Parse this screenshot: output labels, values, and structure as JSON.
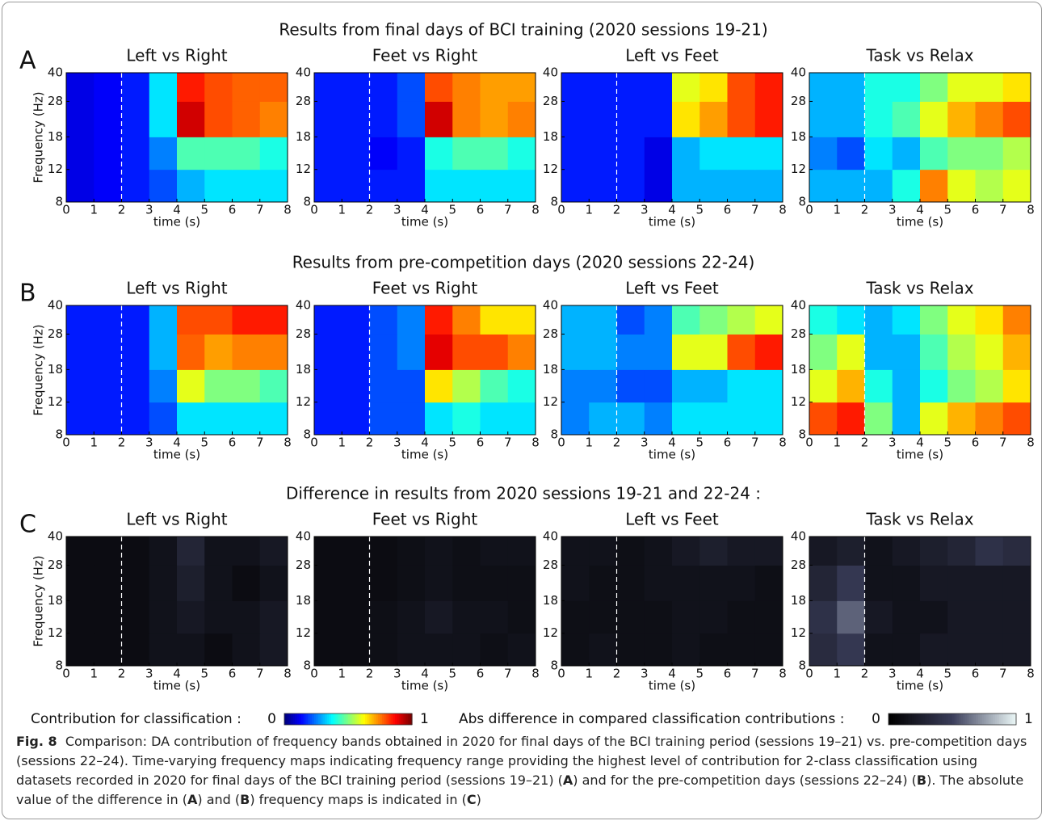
{
  "sections": [
    {
      "label": "A",
      "title": "Results from final days of BCI training (2020 sessions 19-21)"
    },
    {
      "label": "B",
      "title": "Results from pre-competition days (2020 sessions 22-24)"
    },
    {
      "label": "C",
      "title": "Difference in results from 2020 sessions 19-21 and 22-24 :"
    }
  ],
  "chart_data": [
    {
      "type": "heatmap",
      "title": "Left vs Right",
      "xlabel": "time (s)",
      "ylabel": "Frequency (Hz)",
      "xlim": [
        0,
        8
      ],
      "xticks": [
        0,
        1,
        2,
        3,
        4,
        5,
        6,
        7,
        8
      ],
      "ylim": [
        8,
        40
      ],
      "yticks": [
        8,
        12,
        18,
        28,
        40
      ],
      "yscale": "log",
      "xbins": [
        0,
        1,
        2,
        3,
        4,
        5,
        6,
        7,
        8
      ],
      "ybins": [
        8,
        12,
        18,
        28,
        40
      ],
      "vline": 2,
      "colormap": "jet",
      "clim": [
        0,
        1
      ],
      "z": [
        [
          0.1,
          0.12,
          0.15,
          0.2,
          0.3,
          0.35,
          0.35,
          0.35
        ],
        [
          0.1,
          0.12,
          0.15,
          0.25,
          0.45,
          0.45,
          0.45,
          0.4
        ],
        [
          0.1,
          0.12,
          0.15,
          0.35,
          0.92,
          0.8,
          0.78,
          0.75
        ],
        [
          0.1,
          0.12,
          0.15,
          0.35,
          0.85,
          0.8,
          0.78,
          0.78
        ]
      ]
    },
    {
      "type": "heatmap",
      "title": "Feet vs Right",
      "xlabel": "time (s)",
      "xlim": [
        0,
        8
      ],
      "xticks": [
        0,
        1,
        2,
        3,
        4,
        5,
        6,
        7,
        8
      ],
      "ylim": [
        8,
        40
      ],
      "yticks": [
        8,
        12,
        18,
        28,
        40
      ],
      "yscale": "log",
      "xbins": [
        0,
        1,
        2,
        3,
        4,
        5,
        6,
        7,
        8
      ],
      "ybins": [
        8,
        12,
        18,
        28,
        40
      ],
      "vline": 2,
      "colormap": "jet",
      "clim": [
        0,
        1
      ],
      "z": [
        [
          0.15,
          0.15,
          0.15,
          0.15,
          0.35,
          0.35,
          0.35,
          0.35
        ],
        [
          0.15,
          0.15,
          0.12,
          0.15,
          0.4,
          0.45,
          0.45,
          0.4
        ],
        [
          0.15,
          0.15,
          0.15,
          0.2,
          0.92,
          0.75,
          0.72,
          0.75
        ],
        [
          0.15,
          0.15,
          0.15,
          0.2,
          0.8,
          0.75,
          0.72,
          0.72
        ]
      ]
    },
    {
      "type": "heatmap",
      "title": "Left vs Feet",
      "xlabel": "time (s)",
      "xlim": [
        0,
        8
      ],
      "xticks": [
        0,
        1,
        2,
        3,
        4,
        5,
        6,
        7,
        8
      ],
      "ylim": [
        8,
        40
      ],
      "yticks": [
        8,
        12,
        18,
        28,
        40
      ],
      "yscale": "log",
      "xbins": [
        0,
        1,
        2,
        3,
        4,
        5,
        6,
        7,
        8
      ],
      "ybins": [
        8,
        12,
        18,
        28,
        40
      ],
      "vline": 2,
      "colormap": "jet",
      "clim": [
        0,
        1
      ],
      "z": [
        [
          0.15,
          0.15,
          0.15,
          0.1,
          0.3,
          0.3,
          0.3,
          0.3
        ],
        [
          0.15,
          0.15,
          0.15,
          0.1,
          0.3,
          0.35,
          0.35,
          0.35
        ],
        [
          0.15,
          0.15,
          0.15,
          0.15,
          0.65,
          0.72,
          0.8,
          0.85
        ],
        [
          0.15,
          0.15,
          0.15,
          0.15,
          0.6,
          0.65,
          0.8,
          0.85
        ]
      ]
    },
    {
      "type": "heatmap",
      "title": "Task vs Relax",
      "xlabel": "time (s)",
      "xlim": [
        0,
        8
      ],
      "xticks": [
        0,
        1,
        2,
        3,
        4,
        5,
        6,
        7,
        8
      ],
      "ylim": [
        8,
        40
      ],
      "yticks": [
        8,
        12,
        18,
        28,
        40
      ],
      "yscale": "log",
      "xbins": [
        0,
        1,
        2,
        3,
        4,
        5,
        6,
        7,
        8
      ],
      "ybins": [
        8,
        12,
        18,
        28,
        40
      ],
      "vline": 2,
      "colormap": "jet",
      "clim": [
        0,
        1
      ],
      "z": [
        [
          0.3,
          0.3,
          0.3,
          0.4,
          0.75,
          0.6,
          0.55,
          0.6
        ],
        [
          0.25,
          0.2,
          0.35,
          0.3,
          0.45,
          0.5,
          0.5,
          0.55
        ],
        [
          0.3,
          0.3,
          0.4,
          0.45,
          0.6,
          0.7,
          0.75,
          0.8
        ],
        [
          0.3,
          0.3,
          0.4,
          0.4,
          0.5,
          0.6,
          0.6,
          0.65
        ]
      ]
    },
    {
      "type": "heatmap",
      "title": "Left vs Right",
      "xlabel": "time (s)",
      "ylabel": "Frequency (Hz)",
      "xlim": [
        0,
        8
      ],
      "xticks": [
        0,
        1,
        2,
        3,
        4,
        5,
        6,
        7,
        8
      ],
      "ylim": [
        8,
        40
      ],
      "yticks": [
        8,
        12,
        18,
        28,
        40
      ],
      "yscale": "log",
      "xbins": [
        0,
        1,
        2,
        3,
        4,
        5,
        6,
        7,
        8
      ],
      "ybins": [
        8,
        12,
        18,
        28,
        40
      ],
      "vline": 2,
      "colormap": "jet",
      "clim": [
        0,
        1
      ],
      "z": [
        [
          0.15,
          0.15,
          0.15,
          0.2,
          0.35,
          0.35,
          0.35,
          0.35
        ],
        [
          0.15,
          0.15,
          0.15,
          0.25,
          0.6,
          0.5,
          0.5,
          0.45
        ],
        [
          0.15,
          0.15,
          0.15,
          0.3,
          0.78,
          0.72,
          0.75,
          0.75
        ],
        [
          0.15,
          0.15,
          0.15,
          0.3,
          0.8,
          0.8,
          0.85,
          0.85
        ]
      ]
    },
    {
      "type": "heatmap",
      "title": "Feet vs Right",
      "xlabel": "time (s)",
      "xlim": [
        0,
        8
      ],
      "xticks": [
        0,
        1,
        2,
        3,
        4,
        5,
        6,
        7,
        8
      ],
      "ylim": [
        8,
        40
      ],
      "yticks": [
        8,
        12,
        18,
        28,
        40
      ],
      "yscale": "log",
      "xbins": [
        0,
        1,
        2,
        3,
        4,
        5,
        6,
        7,
        8
      ],
      "ybins": [
        8,
        12,
        18,
        28,
        40
      ],
      "vline": 2,
      "colormap": "jet",
      "clim": [
        0,
        1
      ],
      "z": [
        [
          0.15,
          0.15,
          0.2,
          0.2,
          0.35,
          0.4,
          0.35,
          0.35
        ],
        [
          0.15,
          0.15,
          0.2,
          0.2,
          0.65,
          0.55,
          0.45,
          0.4
        ],
        [
          0.15,
          0.15,
          0.2,
          0.25,
          0.9,
          0.8,
          0.8,
          0.75
        ],
        [
          0.15,
          0.15,
          0.2,
          0.25,
          0.85,
          0.75,
          0.65,
          0.65
        ]
      ]
    },
    {
      "type": "heatmap",
      "title": "Left vs Feet",
      "xlabel": "time (s)",
      "xlim": [
        0,
        8
      ],
      "xticks": [
        0,
        1,
        2,
        3,
        4,
        5,
        6,
        7,
        8
      ],
      "ylim": [
        8,
        40
      ],
      "yticks": [
        8,
        12,
        18,
        28,
        40
      ],
      "yscale": "log",
      "xbins": [
        0,
        1,
        2,
        3,
        4,
        5,
        6,
        7,
        8
      ],
      "ybins": [
        8,
        12,
        18,
        28,
        40
      ],
      "vline": 2,
      "colormap": "jet",
      "clim": [
        0,
        1
      ],
      "z": [
        [
          0.25,
          0.3,
          0.3,
          0.25,
          0.35,
          0.35,
          0.35,
          0.35
        ],
        [
          0.25,
          0.25,
          0.2,
          0.2,
          0.3,
          0.3,
          0.35,
          0.35
        ],
        [
          0.3,
          0.3,
          0.25,
          0.25,
          0.6,
          0.6,
          0.8,
          0.85
        ],
        [
          0.3,
          0.3,
          0.2,
          0.25,
          0.45,
          0.5,
          0.55,
          0.6
        ]
      ]
    },
    {
      "type": "heatmap",
      "title": "Task vs Relax",
      "xlabel": "time (s)",
      "xlim": [
        0,
        8
      ],
      "xticks": [
        0,
        1,
        2,
        3,
        4,
        5,
        6,
        7,
        8
      ],
      "ylim": [
        8,
        40
      ],
      "yticks": [
        8,
        12,
        18,
        28,
        40
      ],
      "yscale": "log",
      "xbins": [
        0,
        1,
        2,
        3,
        4,
        5,
        6,
        7,
        8
      ],
      "ybins": [
        8,
        12,
        18,
        28,
        40
      ],
      "vline": 2,
      "colormap": "jet",
      "clim": [
        0,
        1
      ],
      "z": [
        [
          0.8,
          0.85,
          0.5,
          0.3,
          0.6,
          0.7,
          0.75,
          0.8
        ],
        [
          0.6,
          0.7,
          0.4,
          0.3,
          0.4,
          0.5,
          0.55,
          0.65
        ],
        [
          0.5,
          0.6,
          0.3,
          0.3,
          0.45,
          0.55,
          0.6,
          0.7
        ],
        [
          0.4,
          0.35,
          0.3,
          0.35,
          0.5,
          0.6,
          0.65,
          0.75
        ]
      ]
    },
    {
      "type": "heatmap",
      "title": "Left vs Right",
      "xlabel": "time (s)",
      "ylabel": "Frequency (Hz)",
      "xlim": [
        0,
        8
      ],
      "xticks": [
        0,
        1,
        2,
        3,
        4,
        5,
        6,
        7,
        8
      ],
      "ylim": [
        8,
        40
      ],
      "yticks": [
        8,
        12,
        18,
        28,
        40
      ],
      "yscale": "log",
      "xbins": [
        0,
        1,
        2,
        3,
        4,
        5,
        6,
        7,
        8
      ],
      "ybins": [
        8,
        12,
        18,
        28,
        40
      ],
      "vline": 2,
      "colormap": "bone",
      "clim": [
        0,
        1
      ],
      "z": [
        [
          0.1,
          0.1,
          0.1,
          0.15,
          0.15,
          0.1,
          0.15,
          0.2
        ],
        [
          0.1,
          0.1,
          0.1,
          0.15,
          0.2,
          0.15,
          0.15,
          0.2
        ],
        [
          0.1,
          0.1,
          0.1,
          0.15,
          0.25,
          0.15,
          0.1,
          0.15
        ],
        [
          0.1,
          0.1,
          0.1,
          0.15,
          0.3,
          0.15,
          0.15,
          0.2
        ]
      ]
    },
    {
      "type": "heatmap",
      "title": "Feet vs Right",
      "xlabel": "time (s)",
      "xlim": [
        0,
        8
      ],
      "xticks": [
        0,
        1,
        2,
        3,
        4,
        5,
        6,
        7,
        8
      ],
      "ylim": [
        8,
        40
      ],
      "yticks": [
        8,
        12,
        18,
        28,
        40
      ],
      "yscale": "log",
      "xbins": [
        0,
        1,
        2,
        3,
        4,
        5,
        6,
        7,
        8
      ],
      "ybins": [
        8,
        12,
        18,
        28,
        40
      ],
      "vline": 2,
      "colormap": "bone",
      "clim": [
        0,
        1
      ],
      "z": [
        [
          0.1,
          0.1,
          0.12,
          0.15,
          0.15,
          0.15,
          0.12,
          0.15
        ],
        [
          0.1,
          0.1,
          0.12,
          0.15,
          0.2,
          0.15,
          0.15,
          0.12
        ],
        [
          0.1,
          0.1,
          0.1,
          0.12,
          0.15,
          0.12,
          0.12,
          0.12
        ],
        [
          0.1,
          0.1,
          0.1,
          0.12,
          0.15,
          0.12,
          0.15,
          0.15
        ]
      ]
    },
    {
      "type": "heatmap",
      "title": "Left vs Feet",
      "xlabel": "time (s)",
      "xlim": [
        0,
        8
      ],
      "xticks": [
        0,
        1,
        2,
        3,
        4,
        5,
        6,
        7,
        8
      ],
      "ylim": [
        8,
        40
      ],
      "yticks": [
        8,
        12,
        18,
        28,
        40
      ],
      "yscale": "log",
      "xbins": [
        0,
        1,
        2,
        3,
        4,
        5,
        6,
        7,
        8
      ],
      "ybins": [
        8,
        12,
        18,
        28,
        40
      ],
      "vline": 2,
      "colormap": "bone",
      "clim": [
        0,
        1
      ],
      "z": [
        [
          0.12,
          0.15,
          0.12,
          0.12,
          0.15,
          0.12,
          0.12,
          0.12
        ],
        [
          0.12,
          0.12,
          0.12,
          0.12,
          0.15,
          0.15,
          0.12,
          0.12
        ],
        [
          0.15,
          0.12,
          0.12,
          0.15,
          0.15,
          0.15,
          0.15,
          0.12
        ],
        [
          0.15,
          0.15,
          0.12,
          0.15,
          0.2,
          0.25,
          0.2,
          0.2
        ]
      ]
    },
    {
      "type": "heatmap",
      "title": "Task vs Relax",
      "xlabel": "time (s)",
      "xlim": [
        0,
        8
      ],
      "xticks": [
        0,
        1,
        2,
        3,
        4,
        5,
        6,
        7,
        8
      ],
      "ylim": [
        8,
        40
      ],
      "yticks": [
        8,
        12,
        18,
        28,
        40
      ],
      "yscale": "log",
      "xbins": [
        0,
        1,
        2,
        3,
        4,
        5,
        6,
        7,
        8
      ],
      "ybins": [
        8,
        12,
        18,
        28,
        40
      ],
      "vline": 2,
      "colormap": "bone",
      "clim": [
        0,
        1
      ],
      "z": [
        [
          0.35,
          0.45,
          0.15,
          0.15,
          0.2,
          0.2,
          0.2,
          0.2
        ],
        [
          0.4,
          0.6,
          0.2,
          0.15,
          0.15,
          0.2,
          0.2,
          0.2
        ],
        [
          0.3,
          0.45,
          0.15,
          0.15,
          0.2,
          0.2,
          0.2,
          0.2
        ],
        [
          0.2,
          0.25,
          0.15,
          0.2,
          0.25,
          0.3,
          0.4,
          0.35
        ]
      ]
    }
  ],
  "colorbars": [
    {
      "label": "Contribution for classification :",
      "ticks": [
        0,
        1
      ],
      "colormap": "jet"
    },
    {
      "label": "Abs difference in compared classification contributions :",
      "ticks": [
        0,
        1
      ],
      "colormap": "bone"
    }
  ],
  "caption": {
    "label": "Fig. 8",
    "parts": [
      "Comparison: DA contribution of frequency bands obtained in 2020 for final days of the BCI training period (sessions 19–21) vs. pre-competition days (sessions 22–24). Time-varying frequency maps indicating frequency range providing the highest level of contribution for 2-class classification using datasets recorded in 2020 for final days of the BCI training period (sessions 19–21) (",
      "A",
      ") and for the pre-competition days (sessions 22–24) (",
      "B",
      "). The absolute value of the difference in (",
      "A",
      ") and (",
      "B",
      ") frequency maps is indicated in (",
      "C",
      ")"
    ]
  }
}
